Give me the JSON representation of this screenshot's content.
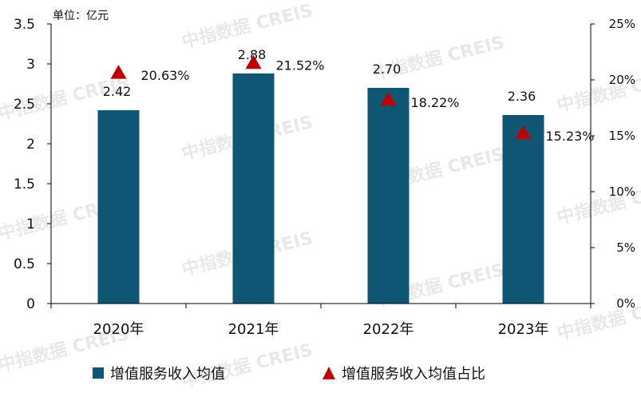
{
  "unit_label": "单位：亿元",
  "watermark": "中指数据 CREIS",
  "colors": {
    "bar": "#0e5674",
    "marker": "#c00000",
    "axis": "#000000"
  },
  "chart_data": {
    "type": "bar",
    "categories": [
      "2020年",
      "2021年",
      "2022年",
      "2023年"
    ],
    "series": [
      {
        "name": "增值服务收入均值",
        "kind": "bar",
        "axis": "left",
        "values": [
          2.42,
          2.88,
          2.7,
          2.36
        ],
        "labels": [
          "2.42",
          "2.88",
          "2.70",
          "2.36"
        ]
      },
      {
        "name": "增值服务收入均值占比",
        "kind": "marker",
        "axis": "right",
        "values": [
          20.63,
          21.52,
          18.22,
          15.23
        ],
        "labels": [
          "20.63%",
          "21.52%",
          "18.22%",
          "15.23%"
        ]
      }
    ],
    "y_left": {
      "min": 0,
      "max": 3.5,
      "ticks": [
        "0",
        "0.5",
        "1",
        "1.5",
        "2",
        "2.5",
        "3",
        "3.5"
      ]
    },
    "y_right": {
      "min": 0,
      "max": 25,
      "ticks": [
        "0%",
        "5%",
        "10%",
        "15%",
        "20%",
        "25%"
      ]
    },
    "legend_position": "bottom",
    "grid": false
  }
}
